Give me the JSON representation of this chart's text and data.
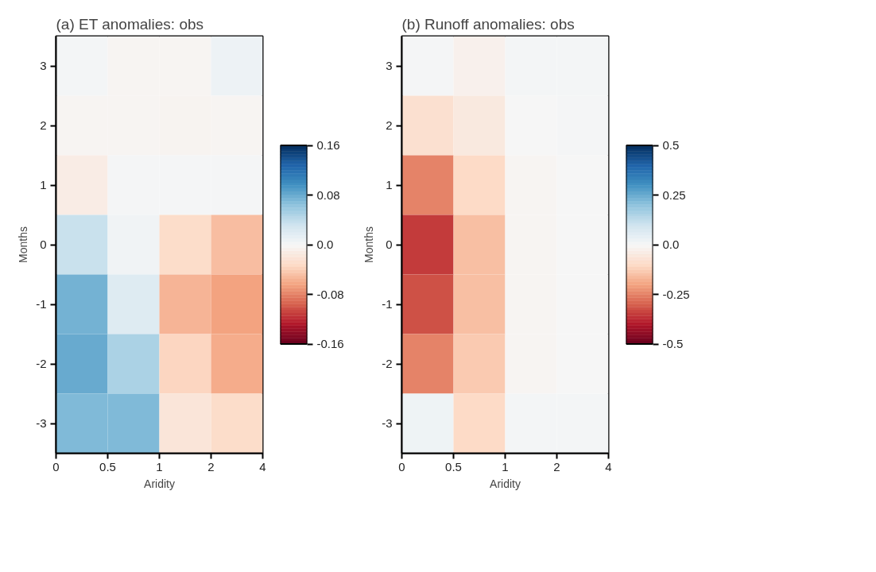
{
  "chart_data": [
    {
      "type": "heatmap",
      "title": "(a) ET anomalies: obs",
      "xlabel": "Aridity",
      "ylabel": "Months",
      "categories": [
        null,
        null,
        null,
        null
      ],
      "annotations": [
        "0",
        "0.5",
        "1",
        "2",
        "4"
      ],
      "y_categories": [
        "3",
        "2",
        "1",
        "0",
        "-1",
        "-2",
        "-3"
      ],
      "cells": [
        [
          0.003,
          -0.003,
          -0.003,
          0.008
        ],
        [
          -0.003,
          -0.003,
          -0.005,
          -0.003
        ],
        [
          -0.012,
          0.002,
          0.002,
          0.002
        ],
        [
          0.035,
          0.005,
          -0.03,
          -0.05
        ],
        [
          0.075,
          0.02,
          -0.055,
          -0.065
        ],
        [
          0.08,
          0.05,
          -0.035,
          -0.06
        ],
        [
          0.07,
          0.07,
          -0.02,
          -0.03
        ]
      ],
      "clim": [
        -0.16,
        0.16
      ],
      "cticks": [
        -0.16,
        -0.08,
        {
          "value": 0,
          "label": "0.0"
        },
        0.08,
        0.16
      ]
    },
    {
      "type": "heatmap",
      "title": "(b) Runoff anomalies: obs",
      "xlabel": "Aridity",
      "ylabel": "Months",
      "categories": [
        null,
        null,
        null,
        null
      ],
      "annotations": [
        "0",
        "0.5",
        "1",
        "2",
        "4"
      ],
      "y_categories": [
        "3",
        "2",
        "1",
        "0",
        "-1",
        "-2",
        "-3"
      ],
      "cells": [
        [
          0.005,
          -0.02,
          0.01,
          0.01
        ],
        [
          -0.08,
          -0.05,
          0.0,
          0.005
        ],
        [
          -0.25,
          -0.1,
          -0.01,
          0.0
        ],
        [
          -0.35,
          -0.15,
          -0.01,
          0.0
        ],
        [
          -0.32,
          -0.15,
          -0.01,
          0.0
        ],
        [
          -0.25,
          -0.13,
          -0.01,
          0.0
        ],
        [
          0.02,
          -0.1,
          0.01,
          0.01
        ]
      ],
      "clim": [
        -0.5,
        0.5
      ],
      "cticks": [
        -0.5,
        -0.25,
        {
          "value": 0,
          "label": "0.0"
        },
        0.25,
        0.5
      ]
    }
  ]
}
